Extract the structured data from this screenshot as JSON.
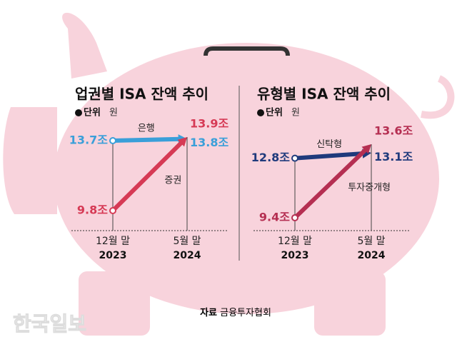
{
  "chart_data": [
    {
      "type": "line",
      "title": "업권별 ISA 잔액 추이",
      "unit_label": "단위",
      "unit": "원",
      "categories": [
        "12월 말",
        "5월 말"
      ],
      "category_years": [
        "2023",
        "2024"
      ],
      "series": [
        {
          "name": "은행",
          "color": "#3a9fd9",
          "values": [
            13.7,
            13.8
          ],
          "value_labels": [
            "13.7조",
            "13.8조"
          ]
        },
        {
          "name": "증권",
          "color": "#d63a55",
          "values": [
            9.8,
            13.9
          ],
          "value_labels": [
            "9.8조",
            "13.9조"
          ]
        }
      ]
    },
    {
      "type": "line",
      "title": "유형별 ISA 잔액 추이",
      "unit_label": "단위",
      "unit": "원",
      "categories": [
        "12월 말",
        "5월 말"
      ],
      "category_years": [
        "2023",
        "2024"
      ],
      "series": [
        {
          "name": "신탁형",
          "color": "#1f3a7c",
          "values": [
            12.8,
            13.1
          ],
          "value_labels": [
            "12.8조",
            "13.1조"
          ]
        },
        {
          "name": "투자중개형",
          "color": "#b52f52",
          "values": [
            9.4,
            13.6
          ],
          "value_labels": [
            "9.4조",
            "13.6조"
          ]
        }
      ]
    }
  ],
  "source_label": "자료",
  "source": "금융투자협회",
  "watermark": "한국일보"
}
